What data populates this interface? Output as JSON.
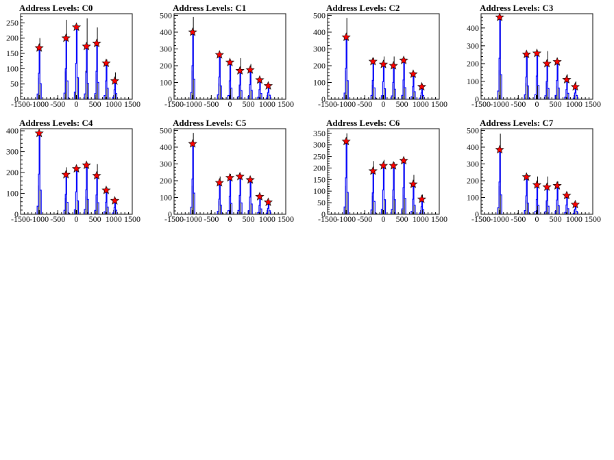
{
  "chart_data": [
    {
      "type": "histogram",
      "title": "Address Levels: C0",
      "xlim": [
        -1500,
        1500
      ],
      "ylim": [
        0,
        280
      ],
      "xticks": [
        -1500,
        -1000,
        -500,
        0,
        500,
        1000,
        1500
      ],
      "yticks": [
        0,
        50,
        100,
        150,
        200,
        250
      ],
      "black_peaks": [
        {
          "x": -1000,
          "y": 200
        },
        {
          "x": -280,
          "y": 260
        },
        {
          "x": 0,
          "y": 245
        },
        {
          "x": 270,
          "y": 265
        },
        {
          "x": 545,
          "y": 235
        },
        {
          "x": 800,
          "y": 130
        },
        {
          "x": 1030,
          "y": 88
        }
      ],
      "blue_peaks": [
        {
          "x": -1000,
          "y": 170
        },
        {
          "x": -280,
          "y": 200
        },
        {
          "x": 0,
          "y": 235
        },
        {
          "x": 270,
          "y": 175
        },
        {
          "x": 545,
          "y": 183
        },
        {
          "x": 800,
          "y": 120
        },
        {
          "x": 1030,
          "y": 62
        }
      ],
      "stars": [
        {
          "x": -1000,
          "y": 168
        },
        {
          "x": -280,
          "y": 200
        },
        {
          "x": 0,
          "y": 236
        },
        {
          "x": 270,
          "y": 173
        },
        {
          "x": 545,
          "y": 183
        },
        {
          "x": 800,
          "y": 118
        },
        {
          "x": 1030,
          "y": 60
        }
      ]
    },
    {
      "type": "histogram",
      "title": "Address Levels: C1",
      "xlim": [
        -1500,
        1500
      ],
      "ylim": [
        0,
        510
      ],
      "xticks": [
        -1500,
        -1000,
        -500,
        0,
        500,
        1000,
        1500
      ],
      "yticks": [
        0,
        100,
        200,
        300,
        400,
        500
      ],
      "black_peaks": [
        {
          "x": -1000,
          "y": 490
        },
        {
          "x": -280,
          "y": 270
        },
        {
          "x": 0,
          "y": 225
        },
        {
          "x": 270,
          "y": 245
        },
        {
          "x": 545,
          "y": 210
        },
        {
          "x": 800,
          "y": 120
        },
        {
          "x": 1030,
          "y": 85
        }
      ],
      "blue_peaks": [
        {
          "x": -1000,
          "y": 400
        },
        {
          "x": -280,
          "y": 265
        },
        {
          "x": 0,
          "y": 220
        },
        {
          "x": 270,
          "y": 170
        },
        {
          "x": 545,
          "y": 175
        },
        {
          "x": 800,
          "y": 115
        },
        {
          "x": 1030,
          "y": 80
        }
      ],
      "stars": [
        {
          "x": -1000,
          "y": 400
        },
        {
          "x": -280,
          "y": 265
        },
        {
          "x": 0,
          "y": 220
        },
        {
          "x": 270,
          "y": 170
        },
        {
          "x": 545,
          "y": 175
        },
        {
          "x": 800,
          "y": 115
        },
        {
          "x": 1030,
          "y": 80
        }
      ]
    },
    {
      "type": "histogram",
      "title": "Address Levels: C2",
      "xlim": [
        -1500,
        1500
      ],
      "ylim": [
        0,
        510
      ],
      "xticks": [
        -1500,
        -1000,
        -500,
        0,
        500,
        1000,
        1500
      ],
      "yticks": [
        0,
        100,
        200,
        300,
        400,
        500
      ],
      "black_peaks": [
        {
          "x": -1000,
          "y": 485
        },
        {
          "x": -280,
          "y": 245
        },
        {
          "x": 0,
          "y": 255
        },
        {
          "x": 270,
          "y": 255
        },
        {
          "x": 545,
          "y": 235
        },
        {
          "x": 800,
          "y": 160
        },
        {
          "x": 1030,
          "y": 80
        }
      ],
      "blue_peaks": [
        {
          "x": -1000,
          "y": 370
        },
        {
          "x": -280,
          "y": 225
        },
        {
          "x": 0,
          "y": 210
        },
        {
          "x": 270,
          "y": 200
        },
        {
          "x": 545,
          "y": 230
        },
        {
          "x": 800,
          "y": 150
        },
        {
          "x": 1030,
          "y": 75
        }
      ],
      "stars": [
        {
          "x": -1000,
          "y": 370
        },
        {
          "x": -280,
          "y": 225
        },
        {
          "x": 0,
          "y": 208
        },
        {
          "x": 270,
          "y": 200
        },
        {
          "x": 545,
          "y": 232
        },
        {
          "x": 800,
          "y": 150
        },
        {
          "x": 1030,
          "y": 75
        }
      ]
    },
    {
      "type": "histogram",
      "title": "Address Levels: C3",
      "xlim": [
        -1500,
        1500
      ],
      "ylim": [
        0,
        480
      ],
      "xticks": [
        -1500,
        -1000,
        -500,
        0,
        500,
        1000,
        1500
      ],
      "yticks": [
        0,
        100,
        200,
        300,
        400
      ],
      "black_peaks": [
        {
          "x": -1000,
          "y": 470
        },
        {
          "x": -280,
          "y": 260
        },
        {
          "x": 0,
          "y": 270
        },
        {
          "x": 270,
          "y": 270
        },
        {
          "x": 545,
          "y": 215
        },
        {
          "x": 800,
          "y": 140
        },
        {
          "x": 1030,
          "y": 100
        }
      ],
      "blue_peaks": [
        {
          "x": -1000,
          "y": 460
        },
        {
          "x": -280,
          "y": 250
        },
        {
          "x": 0,
          "y": 260
        },
        {
          "x": 270,
          "y": 200
        },
        {
          "x": 545,
          "y": 210
        },
        {
          "x": 800,
          "y": 110
        },
        {
          "x": 1030,
          "y": 70
        }
      ],
      "stars": [
        {
          "x": -1000,
          "y": 460
        },
        {
          "x": -280,
          "y": 252
        },
        {
          "x": 0,
          "y": 258
        },
        {
          "x": 270,
          "y": 200
        },
        {
          "x": 545,
          "y": 210
        },
        {
          "x": 800,
          "y": 110
        },
        {
          "x": 1030,
          "y": 70
        }
      ]
    },
    {
      "type": "histogram",
      "title": "Address Levels: C4",
      "xlim": [
        -1500,
        1500
      ],
      "ylim": [
        0,
        410
      ],
      "xticks": [
        -1500,
        -1000,
        -500,
        0,
        500,
        1000,
        1500
      ],
      "yticks": [
        0,
        100,
        200,
        300,
        400
      ],
      "black_peaks": [
        {
          "x": -1000,
          "y": 395
        },
        {
          "x": -280,
          "y": 225
        },
        {
          "x": 0,
          "y": 230
        },
        {
          "x": 270,
          "y": 245
        },
        {
          "x": 545,
          "y": 240
        },
        {
          "x": 800,
          "y": 130
        },
        {
          "x": 1030,
          "y": 78
        }
      ],
      "blue_peaks": [
        {
          "x": -1000,
          "y": 385
        },
        {
          "x": -280,
          "y": 190
        },
        {
          "x": 0,
          "y": 215
        },
        {
          "x": 270,
          "y": 235
        },
        {
          "x": 545,
          "y": 185
        },
        {
          "x": 800,
          "y": 115
        },
        {
          "x": 1030,
          "y": 65
        }
      ],
      "stars": [
        {
          "x": -1000,
          "y": 388
        },
        {
          "x": -280,
          "y": 190
        },
        {
          "x": 0,
          "y": 218
        },
        {
          "x": 270,
          "y": 235
        },
        {
          "x": 545,
          "y": 185
        },
        {
          "x": 800,
          "y": 115
        },
        {
          "x": 1030,
          "y": 65
        }
      ]
    },
    {
      "type": "histogram",
      "title": "Address Levels: C5",
      "xlim": [
        -1500,
        1500
      ],
      "ylim": [
        0,
        510
      ],
      "xticks": [
        -1500,
        -1000,
        -500,
        0,
        500,
        1000,
        1500
      ],
      "yticks": [
        0,
        100,
        200,
        300,
        400,
        500
      ],
      "black_peaks": [
        {
          "x": -1000,
          "y": 485
        },
        {
          "x": -280,
          "y": 225
        },
        {
          "x": 0,
          "y": 240
        },
        {
          "x": 270,
          "y": 240
        },
        {
          "x": 545,
          "y": 215
        },
        {
          "x": 800,
          "y": 110
        },
        {
          "x": 1030,
          "y": 75
        }
      ],
      "blue_peaks": [
        {
          "x": -1000,
          "y": 420
        },
        {
          "x": -280,
          "y": 180
        },
        {
          "x": 0,
          "y": 215
        },
        {
          "x": 270,
          "y": 225
        },
        {
          "x": 545,
          "y": 205
        },
        {
          "x": 800,
          "y": 105
        },
        {
          "x": 1030,
          "y": 70
        }
      ],
      "stars": [
        {
          "x": -1000,
          "y": 420
        },
        {
          "x": -280,
          "y": 188
        },
        {
          "x": 0,
          "y": 218
        },
        {
          "x": 270,
          "y": 225
        },
        {
          "x": 545,
          "y": 205
        },
        {
          "x": 800,
          "y": 105
        },
        {
          "x": 1030,
          "y": 72
        }
      ]
    },
    {
      "type": "histogram",
      "title": "Address Levels: C6",
      "xlim": [
        -1500,
        1500
      ],
      "ylim": [
        0,
        370
      ],
      "xticks": [
        -1500,
        -1000,
        -500,
        0,
        500,
        1000,
        1500
      ],
      "yticks": [
        0,
        50,
        100,
        150,
        200,
        250,
        300,
        350
      ],
      "black_peaks": [
        {
          "x": -1000,
          "y": 350
        },
        {
          "x": -280,
          "y": 230
        },
        {
          "x": 0,
          "y": 235
        },
        {
          "x": 270,
          "y": 225
        },
        {
          "x": 545,
          "y": 240
        },
        {
          "x": 800,
          "y": 170
        },
        {
          "x": 1030,
          "y": 85
        }
      ],
      "blue_peaks": [
        {
          "x": -1000,
          "y": 315
        },
        {
          "x": -280,
          "y": 185
        },
        {
          "x": 0,
          "y": 210
        },
        {
          "x": 270,
          "y": 210
        },
        {
          "x": 545,
          "y": 230
        },
        {
          "x": 800,
          "y": 130
        },
        {
          "x": 1030,
          "y": 65
        }
      ],
      "stars": [
        {
          "x": -1000,
          "y": 315
        },
        {
          "x": -280,
          "y": 187
        },
        {
          "x": 0,
          "y": 210
        },
        {
          "x": 270,
          "y": 210
        },
        {
          "x": 545,
          "y": 232
        },
        {
          "x": 800,
          "y": 130
        },
        {
          "x": 1030,
          "y": 65
        }
      ]
    },
    {
      "type": "histogram",
      "title": "Address Levels: C7",
      "xlim": [
        -1500,
        1500
      ],
      "ylim": [
        0,
        510
      ],
      "xticks": [
        -1500,
        -1000,
        -500,
        0,
        500,
        1000,
        1500
      ],
      "yticks": [
        0,
        100,
        200,
        300,
        400,
        500
      ],
      "black_peaks": [
        {
          "x": -1000,
          "y": 480
        },
        {
          "x": -280,
          "y": 240
        },
        {
          "x": 0,
          "y": 225
        },
        {
          "x": 270,
          "y": 225
        },
        {
          "x": 545,
          "y": 195
        },
        {
          "x": 800,
          "y": 130
        },
        {
          "x": 1030,
          "y": 65
        }
      ],
      "blue_peaks": [
        {
          "x": -1000,
          "y": 385
        },
        {
          "x": -280,
          "y": 220
        },
        {
          "x": 0,
          "y": 175
        },
        {
          "x": 270,
          "y": 160
        },
        {
          "x": 545,
          "y": 170
        },
        {
          "x": 800,
          "y": 110
        },
        {
          "x": 1030,
          "y": 60
        }
      ],
      "stars": [
        {
          "x": -1000,
          "y": 385
        },
        {
          "x": -280,
          "y": 222
        },
        {
          "x": 0,
          "y": 175
        },
        {
          "x": 270,
          "y": 162
        },
        {
          "x": 545,
          "y": 170
        },
        {
          "x": 800,
          "y": 112
        },
        {
          "x": 1030,
          "y": 58
        }
      ]
    }
  ],
  "colors": {
    "black_hist": "#000000",
    "blue_hist": "#0000ff",
    "star_fill": "#ff0000",
    "star_stroke": "#000000"
  }
}
